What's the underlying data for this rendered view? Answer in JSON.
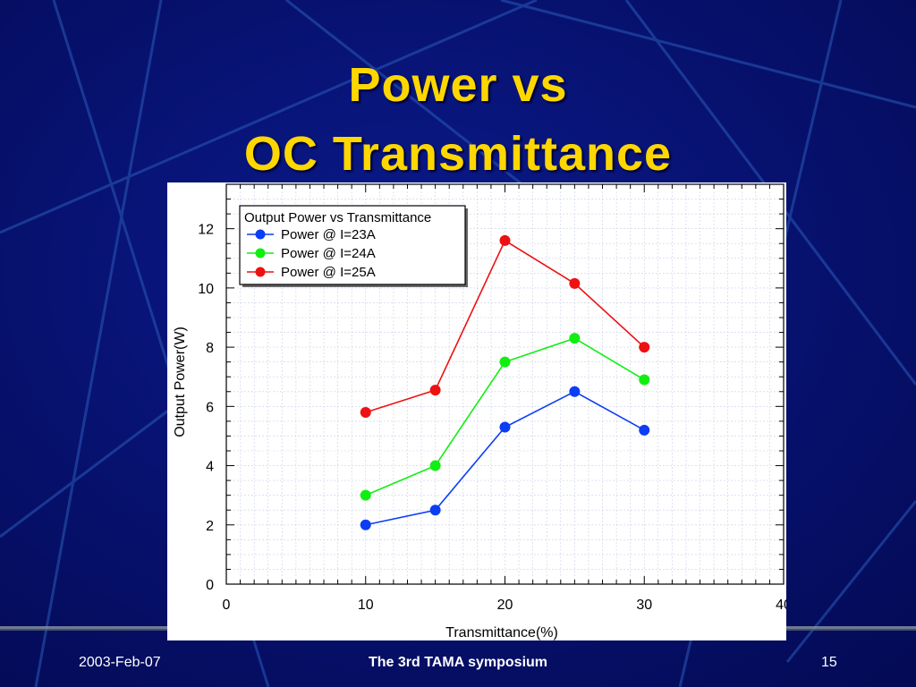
{
  "slide": {
    "title_line1": "Power vs",
    "title_line2": "OC Transmittance",
    "footer_date": "2003-Feb-07",
    "footer_event": "The 3rd TAMA symposium",
    "footer_page": "15",
    "colors": {
      "background": "#06106e",
      "title": "#ffd700",
      "footer_text": "#ffffff"
    }
  },
  "chart_data": {
    "type": "line",
    "title": "",
    "xlabel": "Transmittance(%)",
    "ylabel": "Output Power(W)",
    "xlim": [
      0,
      40
    ],
    "ylim": [
      0,
      13.5
    ],
    "xticks": [
      0,
      10,
      20,
      30,
      40
    ],
    "yticks": [
      0,
      2,
      4,
      6,
      8,
      10,
      12
    ],
    "grid": true,
    "legend_title": "Output Power vs Transmittance",
    "legend_position": "top-left",
    "x": [
      10,
      15,
      20,
      25,
      30
    ],
    "series": [
      {
        "name": "Power @ I=23A",
        "color": "#0b3df5",
        "values": [
          2.0,
          2.5,
          5.3,
          6.5,
          5.2
        ]
      },
      {
        "name": "Power @ I=24A",
        "color": "#11ee11",
        "values": [
          3.0,
          4.0,
          7.5,
          8.3,
          6.9
        ]
      },
      {
        "name": "Power @ I=25A",
        "color": "#ee1111",
        "values": [
          5.8,
          6.55,
          11.6,
          10.15,
          8.0
        ]
      }
    ]
  }
}
